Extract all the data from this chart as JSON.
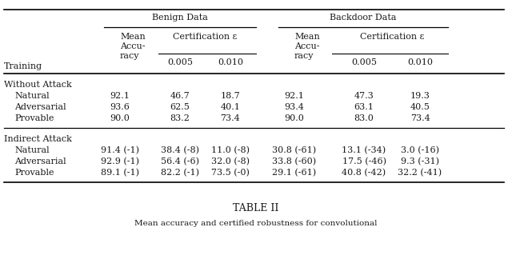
{
  "title": "TABLE II",
  "subtitle": "Mean accuracy and certified robustness for convolutional",
  "sections": [
    {
      "section_header": "Without Attack",
      "rows": [
        {
          "name": "Natural",
          "b_mean": "92.1",
          "b_005": "46.7",
          "b_010": "18.7",
          "d_mean": "92.1",
          "d_005": "47.3",
          "d_010": "19.3"
        },
        {
          "name": "Adversarial",
          "b_mean": "93.6",
          "b_005": "62.5",
          "b_010": "40.1",
          "d_mean": "93.4",
          "d_005": "63.1",
          "d_010": "40.5"
        },
        {
          "name": "Provable",
          "b_mean": "90.0",
          "b_005": "83.2",
          "b_010": "73.4",
          "d_mean": "90.0",
          "d_005": "83.0",
          "d_010": "73.4"
        }
      ]
    },
    {
      "section_header": "Indirect Attack",
      "rows": [
        {
          "name": "Natural",
          "b_mean": "91.4 (-1)",
          "b_005": "38.4 (-8)",
          "b_010": "11.0 (-8)",
          "d_mean": "30.8 (-61)",
          "d_005": "13.1 (-34)",
          "d_010": "3.0 (-16)"
        },
        {
          "name": "Adversarial",
          "b_mean": "92.9 (-1)",
          "b_005": "56.4 (-6)",
          "b_010": "32.0 (-8)",
          "d_mean": "33.8 (-60)",
          "d_005": "17.5 (-46)",
          "d_010": "9.3 (-31)"
        },
        {
          "name": "Provable",
          "b_mean": "89.1 (-1)",
          "b_005": "82.2 (-1)",
          "b_010": "73.5 (-0)",
          "d_mean": "29.1 (-61)",
          "d_005": "40.8 (-42)",
          "d_010": "32.2 (-41)"
        }
      ]
    }
  ],
  "bg_color": "#ffffff",
  "text_color": "#1a1a1a",
  "font_size": 8.0,
  "font_family": "DejaVu Serif"
}
